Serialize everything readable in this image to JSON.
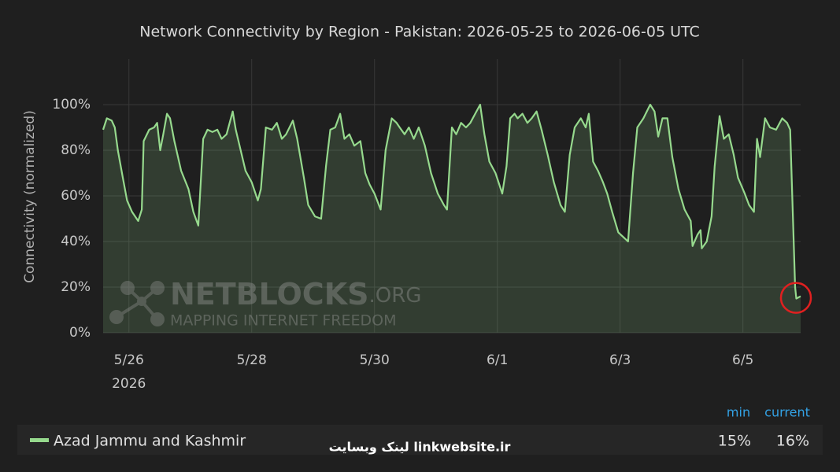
{
  "chart_data": {
    "type": "area",
    "title": "Network Connectivity by Region - Pakistan: 2026-05-25 to 2026-06-05 UTC",
    "y_label": "Connectivity (normalized)",
    "xlim": [
      -0.42,
      10.94
    ],
    "xticks": [
      {
        "value": 0,
        "label": "5/26"
      },
      {
        "value": 2,
        "label": "5/28"
      },
      {
        "value": 4,
        "label": "5/30"
      },
      {
        "value": 6,
        "label": "6/1"
      },
      {
        "value": 8,
        "label": "6/3"
      },
      {
        "value": 10,
        "label": "6/5"
      }
    ],
    "x_year_label": "2026",
    "ylim": [
      0,
      120
    ],
    "yticks": [
      {
        "value": 0,
        "label": "0%"
      },
      {
        "value": 20,
        "label": "20%"
      },
      {
        "value": 40,
        "label": "40%"
      },
      {
        "value": 60,
        "label": "60%"
      },
      {
        "value": 80,
        "label": "80%"
      },
      {
        "value": 100,
        "label": "100%"
      }
    ],
    "grid": true,
    "x": [
      -0.42,
      -0.36,
      -0.28,
      -0.23,
      -0.18,
      -0.1,
      -0.03,
      0.05,
      0.15,
      0.21,
      0.24,
      0.33,
      0.41,
      0.46,
      0.51,
      0.56,
      0.62,
      0.67,
      0.74,
      0.85,
      0.97,
      1.05,
      1.13,
      1.21,
      1.28,
      1.36,
      1.44,
      1.51,
      1.59,
      1.69,
      1.74,
      1.82,
      1.9,
      2.0,
      2.1,
      2.15,
      2.23,
      2.33,
      2.41,
      2.49,
      2.56,
      2.67,
      2.74,
      2.85,
      2.92,
      3.03,
      3.13,
      3.21,
      3.28,
      3.36,
      3.44,
      3.51,
      3.59,
      3.67,
      3.77,
      3.85,
      3.92,
      4.0,
      4.1,
      4.18,
      4.28,
      4.36,
      4.41,
      4.49,
      4.56,
      4.64,
      4.72,
      4.82,
      4.92,
      5.03,
      5.13,
      5.18,
      5.26,
      5.33,
      5.41,
      5.49,
      5.56,
      5.64,
      5.72,
      5.79,
      5.87,
      5.97,
      6.08,
      6.15,
      6.21,
      6.28,
      6.33,
      6.41,
      6.49,
      6.56,
      6.64,
      6.72,
      6.82,
      6.92,
      7.03,
      7.1,
      7.18,
      7.26,
      7.36,
      7.44,
      7.49,
      7.56,
      7.64,
      7.72,
      7.79,
      7.87,
      7.97,
      8.05,
      8.13,
      8.21,
      8.28,
      8.38,
      8.49,
      8.56,
      8.62,
      8.69,
      8.77,
      8.85,
      8.95,
      9.05,
      9.15,
      9.18,
      9.26,
      9.31,
      9.33,
      9.41,
      9.49,
      9.54,
      9.62,
      9.69,
      9.77,
      9.85,
      9.92,
      10.03,
      10.1,
      10.18,
      10.23,
      10.28,
      10.36,
      10.44,
      10.54,
      10.64,
      10.72,
      10.77,
      10.85,
      10.87,
      10.94
    ],
    "series": [
      {
        "name": "Azad Jammu and Kashmir",
        "color": "#96d98d",
        "values": [
          89,
          94,
          93,
          90,
          80,
          68,
          58,
          53,
          49,
          54,
          84,
          89,
          90,
          92,
          80,
          87,
          96,
          94,
          84,
          71,
          63,
          53,
          47,
          85,
          89,
          88,
          89,
          85,
          87,
          97,
          89,
          80,
          71,
          66,
          58,
          63,
          90,
          89,
          92,
          85,
          87,
          93,
          85,
          68,
          56,
          51,
          50,
          73,
          89,
          90,
          96,
          85,
          87,
          82,
          84,
          70,
          65,
          61,
          54,
          80,
          94,
          92,
          90,
          87,
          90,
          85,
          90,
          82,
          70,
          61,
          56,
          54,
          90,
          87,
          92,
          90,
          92,
          96,
          100,
          87,
          75,
          70,
          61,
          73,
          94,
          96,
          94,
          96,
          92,
          94,
          97,
          89,
          78,
          66,
          56,
          53,
          78,
          90,
          94,
          90,
          96,
          75,
          71,
          66,
          61,
          53,
          44,
          42,
          40,
          70,
          90,
          94,
          100,
          97,
          86,
          94,
          94,
          77,
          63,
          54,
          49,
          38,
          43,
          45,
          37,
          40,
          51,
          73,
          95,
          85,
          87,
          78,
          68,
          61,
          56,
          53,
          85,
          77,
          94,
          90,
          89,
          94,
          92,
          89,
          20,
          15,
          16
        ]
      }
    ],
    "stats": [
      {
        "name": "min",
        "value": 15,
        "label": "15%"
      },
      {
        "name": "current",
        "value": 16,
        "label": "16%"
      }
    ],
    "watermark": {
      "brand": "NETBLOCKS",
      "brand_suffix": ".ORG",
      "tagline": "MAPPING INTERNET FREEDOM"
    },
    "footer_watermark": "لینک وبسایت  linkwebsite.ir"
  }
}
